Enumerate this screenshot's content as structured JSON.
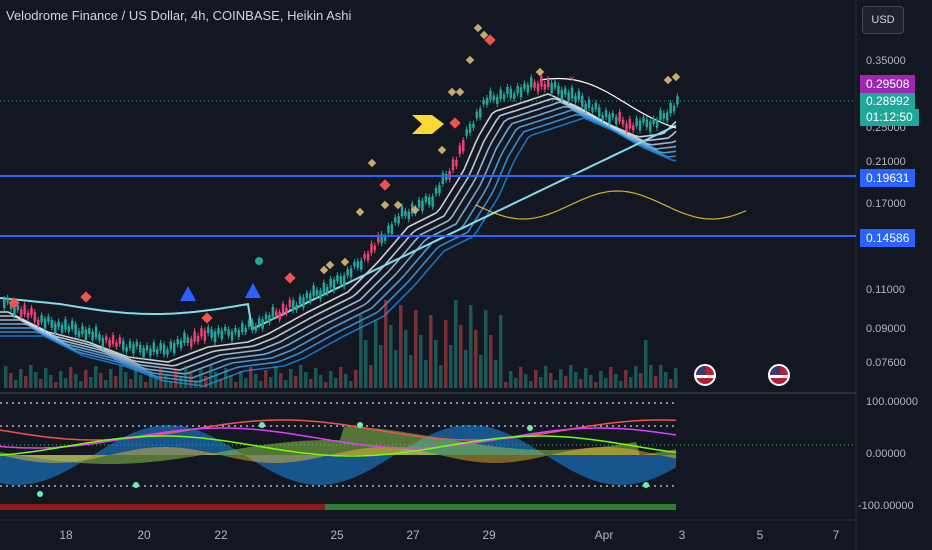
{
  "header": {
    "title": "Velodrome Finance / US Dollar, 4h, COINBASE, Heikin Ashi",
    "currency": "USD"
  },
  "price_axis": {
    "labels": [
      "0.35000",
      "0.25000",
      "0.21000",
      "0.17000",
      "0.11000",
      "0.09000",
      "0.07600"
    ],
    "current_price": "0.28992",
    "countdown": "01:12:50",
    "alert_high": "0.29508",
    "line_upper": "0.19631",
    "line_lower": "0.14586",
    "colors": {
      "current": "#21a69a",
      "alert": "#9c27b0",
      "level": "#2962ff"
    }
  },
  "oscillator_axis": {
    "labels": [
      "100.00000",
      "0.00000",
      "-100.00000"
    ]
  },
  "time_axis": {
    "labels": [
      "18",
      "20",
      "22",
      "25",
      "27",
      "29",
      "Apr",
      "3",
      "5",
      "7"
    ]
  },
  "icons": {
    "event_flag": "us-flag-icon",
    "signal_arrow": "yellow-arrow-icon"
  }
}
